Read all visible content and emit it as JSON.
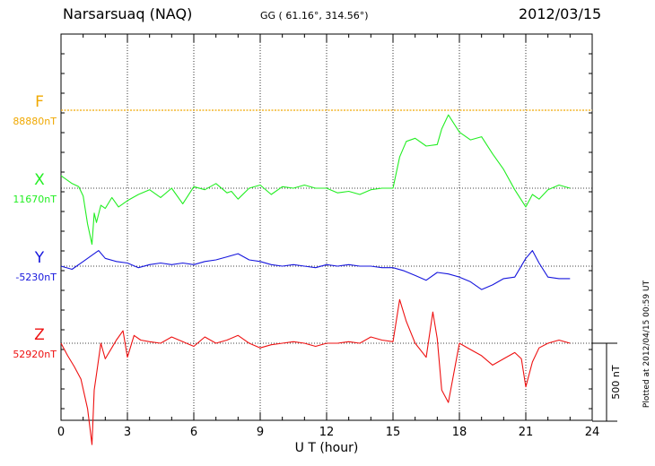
{
  "header": {
    "station": "Narsarsuaq (NAQ)",
    "coords": "GG ( 61.16°, 314.56°)",
    "date": "2012/03/15"
  },
  "footer": {
    "plotted": "Plotted at 2012/04/15 00:59 UT"
  },
  "chart_data": {
    "type": "line",
    "xlabel": "U T (hour)",
    "xlim": [
      0,
      24
    ],
    "xticks": [
      "0",
      "3",
      "6",
      "9",
      "12",
      "15",
      "18",
      "21",
      "24"
    ],
    "scale_label": "500 nT",
    "scale_nT": 500,
    "grid": true,
    "series": [
      {
        "name": "F",
        "baseline_label": "88880nT",
        "color": "#f0a800",
        "x": [
          0,
          24
        ],
        "y": [
          0,
          0
        ]
      },
      {
        "name": "X",
        "baseline_label": "11670nT",
        "color": "#22ee22",
        "x": [
          0,
          0.5,
          0.8,
          1.0,
          1.2,
          1.4,
          1.5,
          1.6,
          1.8,
          2.0,
          2.3,
          2.6,
          3.0,
          3.5,
          4.0,
          4.5,
          5.0,
          5.5,
          6.0,
          6.5,
          7.0,
          7.5,
          7.7,
          8.0,
          8.5,
          9.0,
          9.5,
          10.0,
          10.5,
          11.0,
          11.5,
          12.0,
          12.5,
          13.0,
          13.5,
          14.0,
          14.5,
          15.0,
          15.3,
          15.6,
          16.0,
          16.5,
          17.0,
          17.2,
          17.5,
          18.0,
          18.5,
          19.0,
          19.5,
          20.0,
          20.5,
          21.0,
          21.3,
          21.6,
          22.0,
          22.5,
          23.0
        ],
        "y": [
          80,
          30,
          10,
          -50,
          -230,
          -360,
          -160,
          -220,
          -110,
          -130,
          -60,
          -120,
          -80,
          -40,
          -10,
          -60,
          0,
          -100,
          10,
          -10,
          30,
          -30,
          -20,
          -70,
          0,
          20,
          -40,
          10,
          0,
          20,
          0,
          0,
          -30,
          -20,
          -40,
          -10,
          0,
          0,
          200,
          300,
          320,
          270,
          280,
          380,
          470,
          360,
          310,
          330,
          220,
          120,
          -10,
          -120,
          -40,
          -70,
          -10,
          20,
          0
        ]
      },
      {
        "name": "Y",
        "baseline_label": "-5230nT",
        "color": "#1616dd",
        "x": [
          0,
          0.5,
          1.0,
          1.4,
          1.7,
          2.0,
          2.5,
          3.0,
          3.5,
          4.0,
          4.5,
          5.0,
          5.5,
          6.0,
          6.5,
          7.0,
          7.5,
          8.0,
          8.5,
          9.0,
          9.5,
          10.0,
          10.5,
          11.0,
          11.5,
          12.0,
          12.5,
          13.0,
          13.5,
          14.0,
          14.5,
          15.0,
          15.5,
          16.0,
          16.5,
          17.0,
          17.5,
          18.0,
          18.5,
          19.0,
          19.5,
          20.0,
          20.5,
          21.0,
          21.3,
          21.6,
          22.0,
          22.5,
          23.0
        ],
        "y": [
          0,
          -20,
          30,
          70,
          100,
          50,
          30,
          20,
          -10,
          10,
          20,
          10,
          20,
          10,
          30,
          40,
          60,
          80,
          40,
          30,
          10,
          0,
          10,
          0,
          -10,
          10,
          0,
          10,
          0,
          0,
          -10,
          -10,
          -30,
          -60,
          -90,
          -40,
          -50,
          -70,
          -100,
          -150,
          -120,
          -80,
          -70,
          50,
          100,
          20,
          -70,
          -80,
          -80
        ]
      },
      {
        "name": "Z",
        "baseline_label": "52920nT",
        "color": "#ee1111",
        "x": [
          0,
          0.3,
          0.6,
          0.9,
          1.2,
          1.4,
          1.5,
          1.6,
          1.8,
          2.0,
          2.5,
          2.8,
          3.0,
          3.3,
          3.6,
          4.0,
          4.5,
          5.0,
          5.5,
          6.0,
          6.5,
          7.0,
          7.5,
          8.0,
          8.5,
          9.0,
          9.5,
          10.0,
          10.5,
          11.0,
          11.5,
          12.0,
          12.5,
          13.0,
          13.5,
          14.0,
          14.5,
          15.0,
          15.3,
          15.6,
          16.0,
          16.5,
          16.8,
          17.0,
          17.2,
          17.5,
          18.0,
          18.5,
          19.0,
          19.5,
          20.0,
          20.5,
          20.8,
          21.0,
          21.3,
          21.6,
          22.0,
          22.5,
          23.0
        ],
        "y": [
          0,
          -80,
          -150,
          -230,
          -420,
          -650,
          -300,
          -200,
          0,
          -100,
          20,
          80,
          -90,
          50,
          20,
          10,
          0,
          40,
          10,
          -20,
          40,
          0,
          20,
          50,
          0,
          -30,
          -10,
          0,
          10,
          0,
          -20,
          0,
          0,
          10,
          0,
          40,
          20,
          10,
          280,
          140,
          0,
          -90,
          200,
          30,
          -300,
          -380,
          0,
          -40,
          -80,
          -140,
          -100,
          -60,
          -100,
          -280,
          -120,
          -30,
          0,
          20,
          0
        ]
      }
    ]
  }
}
